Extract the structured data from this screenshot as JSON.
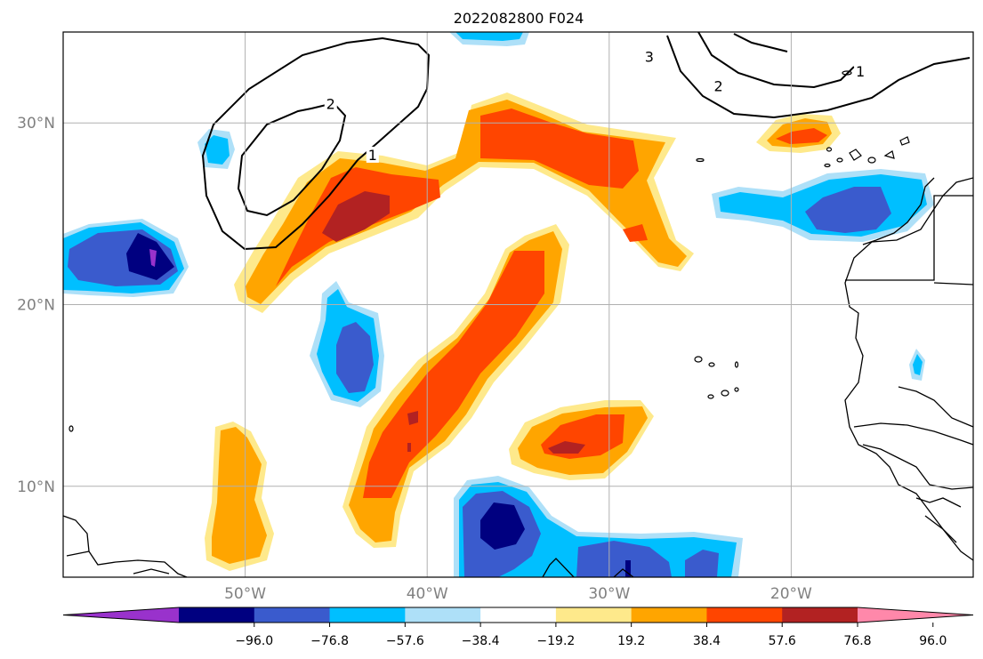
{
  "title": "2022082800 F024",
  "map": {
    "lon_range": [
      -60,
      -10
    ],
    "lat_range": [
      5,
      35
    ],
    "gridlines": true
  },
  "axes": {
    "x_ticks": [
      {
        "lon": -50,
        "label": "50°W"
      },
      {
        "lon": -40,
        "label": "40°W"
      },
      {
        "lon": -30,
        "label": "30°W"
      },
      {
        "lon": -20,
        "label": "20°W"
      }
    ],
    "y_ticks": [
      {
        "lat": 10,
        "label": "10°N"
      },
      {
        "lat": 20,
        "label": "20°N"
      },
      {
        "lat": 30,
        "label": "30°N"
      }
    ]
  },
  "colorbar": {
    "orientation": "horizontal",
    "colors": [
      "#9932cc",
      "#000080",
      "#3a5bcd",
      "#00bfff",
      "#aee0f8",
      "#ffffff",
      "#fee98b",
      "#ffa500",
      "#ff4500",
      "#b22222",
      "#ff88aa"
    ],
    "labels": [
      "−96.0",
      "−76.8",
      "−57.6",
      "−38.4",
      "−19.2",
      "19.2",
      "38.4",
      "57.6",
      "76.8",
      "96.0"
    ]
  },
  "contour_labels": [
    {
      "text": "3",
      "lon": -27.8,
      "lat": 33.6
    },
    {
      "text": "2",
      "lon": -24.0,
      "lat": 32.0
    },
    {
      "text": "1",
      "lon": -16.2,
      "lat": 32.8
    },
    {
      "text": "2",
      "lon": -45.3,
      "lat": 31.0
    },
    {
      "text": "1",
      "lon": -43.0,
      "lat": 28.2
    }
  ]
}
